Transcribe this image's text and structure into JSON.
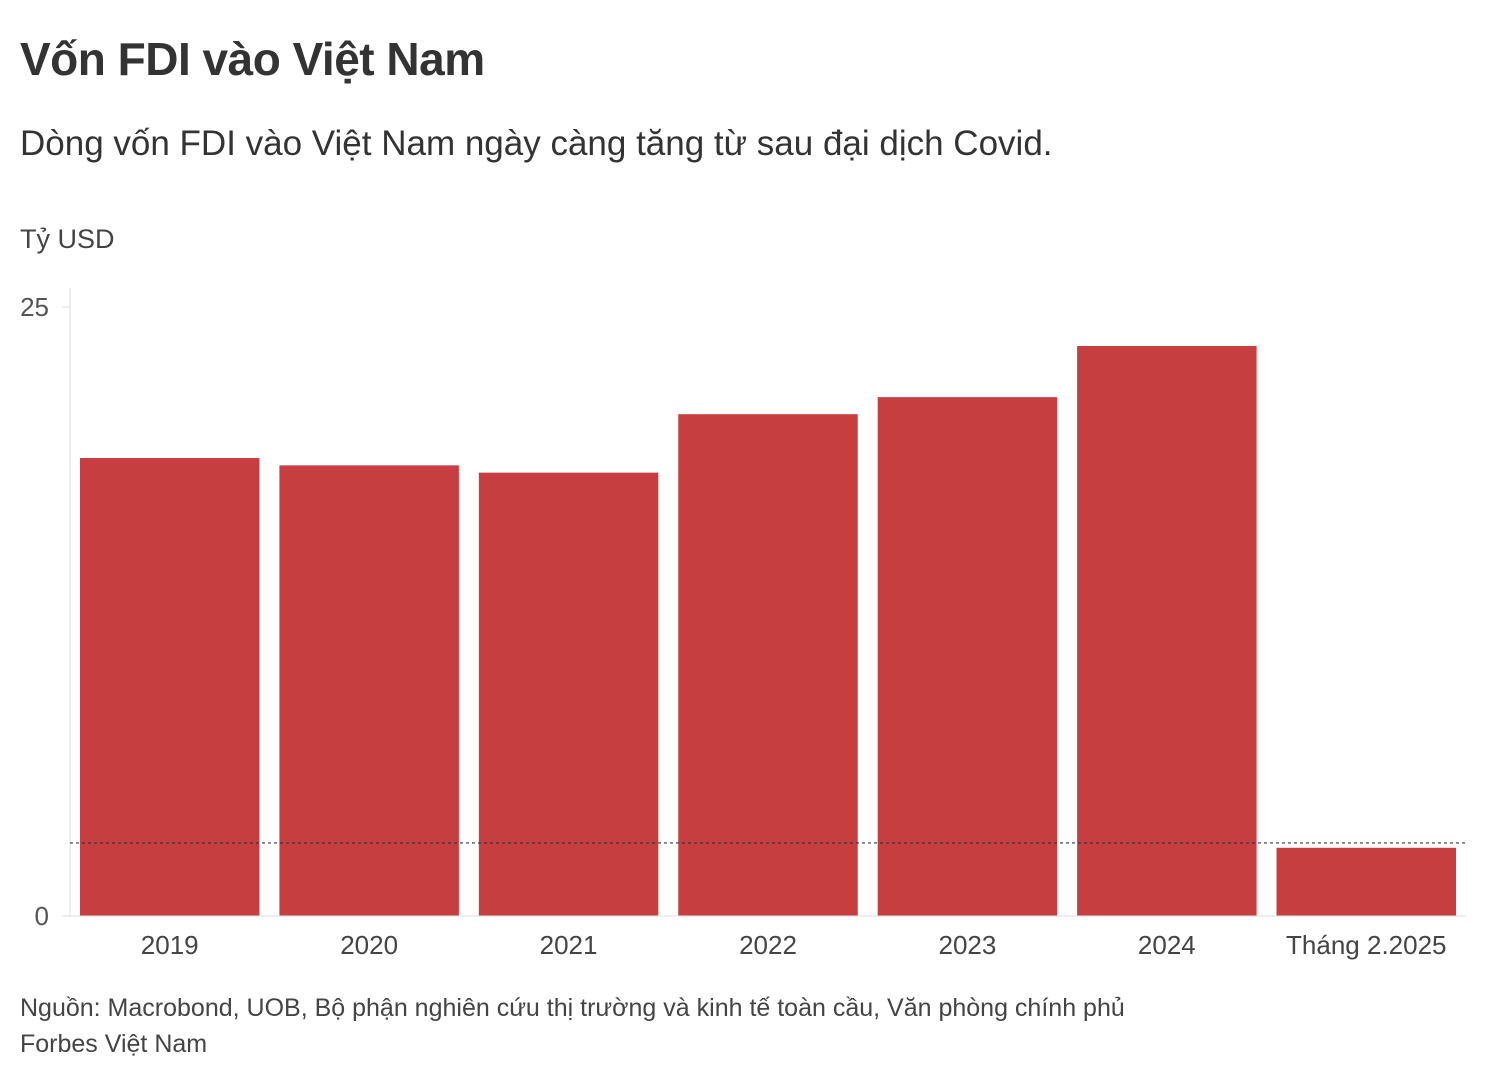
{
  "header": {
    "title": "Vốn FDI vào Việt Nam",
    "subtitle": "Dòng vốn FDI vào Việt Nam ngày càng tăng từ sau đại dịch Covid."
  },
  "footer": {
    "source": "Nguồn: Macrobond, UOB, Bộ phận nghiên cứu thị trường và kinh tế toàn cầu, Văn phòng chính phủ",
    "publisher": "Forbes Việt Nam"
  },
  "colors": {
    "bar": "#c73e41",
    "axis": "#dddddd",
    "reference_line": "#333333"
  },
  "chart_data": {
    "type": "bar",
    "title": "Vốn FDI vào Việt Nam",
    "subtitle": "Dòng vốn FDI vào Việt Nam ngày càng tăng từ sau đại dịch Covid.",
    "ylabel": "Tỷ USD",
    "xlabel": "",
    "categories": [
      "2019",
      "2020",
      "2021",
      "2022",
      "2023",
      "2024",
      "Tháng 2.2025"
    ],
    "values": [
      18.8,
      18.5,
      18.2,
      20.6,
      21.3,
      23.4,
      2.8
    ],
    "ylim": [
      0,
      25
    ],
    "yticks": [
      0,
      25
    ],
    "reference_line": 3.0,
    "grid": false,
    "legend": "none"
  }
}
